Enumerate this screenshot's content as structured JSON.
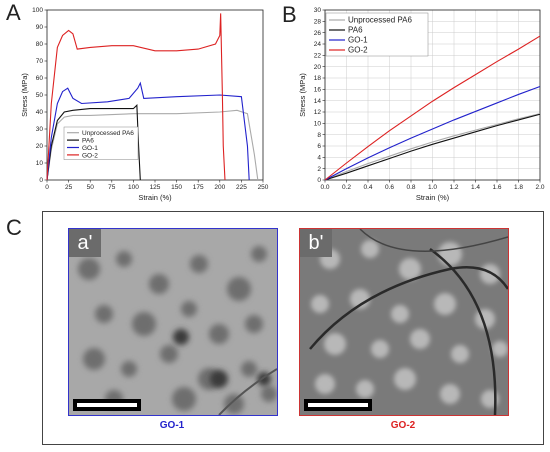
{
  "panels": {
    "a": {
      "letter": "A"
    },
    "b": {
      "letter": "B"
    },
    "c": {
      "letter": "C"
    }
  },
  "chart_data": [
    {
      "type": "line",
      "panel": "A",
      "xlabel": "Strain (%)",
      "ylabel": "Stress (MPa)",
      "xlim": [
        0,
        250
      ],
      "ylim": [
        0,
        100
      ],
      "xticks": [
        0,
        25,
        50,
        75,
        100,
        125,
        150,
        175,
        200,
        225,
        250
      ],
      "yticks": [
        0,
        10,
        20,
        30,
        40,
        50,
        60,
        70,
        80,
        90,
        100
      ],
      "grid": false,
      "legend_position": "bottom-center",
      "series": [
        {
          "name": "Unprocessed PA6",
          "color": "#aaaaaa",
          "x": [
            0,
            5,
            12,
            20,
            30,
            50,
            100,
            150,
            200,
            220,
            232,
            240,
            244
          ],
          "y": [
            0,
            18,
            33,
            37,
            38,
            38,
            39,
            39,
            40,
            41,
            39,
            15,
            0
          ]
        },
        {
          "name": "PA6",
          "color": "#111111",
          "x": [
            0,
            5,
            12,
            20,
            30,
            50,
            75,
            100,
            104,
            106,
            108
          ],
          "y": [
            0,
            20,
            35,
            40,
            41,
            42,
            42,
            42,
            44,
            20,
            0
          ]
        },
        {
          "name": "GO-1",
          "color": "#2222cc",
          "x": [
            0,
            5,
            12,
            18,
            24,
            30,
            40,
            70,
            95,
            105,
            108,
            112,
            150,
            200,
            225,
            232,
            234
          ],
          "y": [
            0,
            25,
            45,
            52,
            54,
            48,
            45,
            46,
            48,
            54,
            57,
            48,
            49,
            50,
            49,
            20,
            0
          ]
        },
        {
          "name": "GO-2",
          "color": "#dd2222",
          "x": [
            0,
            5,
            12,
            18,
            25,
            30,
            35,
            50,
            75,
            100,
            125,
            150,
            175,
            195,
            200,
            201,
            203,
            204,
            206
          ],
          "y": [
            0,
            45,
            78,
            85,
            88,
            86,
            77,
            78,
            79,
            79,
            76,
            76,
            77,
            80,
            85,
            98,
            50,
            20,
            0
          ]
        }
      ]
    },
    {
      "type": "line",
      "panel": "B",
      "xlabel": "Strain (%)",
      "ylabel": "Stress (MPa)",
      "xlim": [
        0,
        2.0
      ],
      "ylim": [
        0,
        30
      ],
      "xticks": [
        0.0,
        0.2,
        0.4,
        0.6,
        0.8,
        1.0,
        1.2,
        1.4,
        1.6,
        1.8,
        2.0
      ],
      "yticks": [
        0,
        2,
        4,
        6,
        8,
        10,
        12,
        14,
        16,
        18,
        20,
        22,
        24,
        26,
        28,
        30
      ],
      "grid": true,
      "legend_position": "top-left",
      "series": [
        {
          "name": "Unprocessed PA6",
          "color": "#aaaaaa",
          "x": [
            0,
            0.2,
            0.4,
            0.6,
            0.8,
            1.0,
            1.2,
            1.4,
            1.6,
            1.8,
            2.0
          ],
          "y": [
            0,
            1.5,
            2.9,
            4.2,
            5.5,
            6.7,
            7.8,
            8.8,
            9.8,
            10.8,
            11.7
          ]
        },
        {
          "name": "PA6",
          "color": "#111111",
          "x": [
            0,
            0.2,
            0.4,
            0.6,
            0.8,
            1.0,
            1.2,
            1.4,
            1.6,
            1.8,
            2.0
          ],
          "y": [
            0,
            1.2,
            2.5,
            3.8,
            5.1,
            6.3,
            7.4,
            8.5,
            9.6,
            10.6,
            11.6
          ]
        },
        {
          "name": "GO-1",
          "color": "#2222cc",
          "x": [
            0,
            0.2,
            0.4,
            0.6,
            0.8,
            1.0,
            1.2,
            1.4,
            1.6,
            1.8,
            2.0
          ],
          "y": [
            0,
            2.0,
            3.9,
            5.7,
            7.4,
            9.0,
            10.6,
            12.1,
            13.6,
            15.1,
            16.5
          ]
        },
        {
          "name": "GO-2",
          "color": "#dd2222",
          "x": [
            0,
            0.2,
            0.4,
            0.6,
            0.8,
            1.0,
            1.2,
            1.4,
            1.6,
            1.8,
            2.0
          ],
          "y": [
            0,
            3.0,
            5.9,
            8.7,
            11.3,
            13.9,
            16.3,
            18.6,
            20.9,
            23.1,
            25.4
          ]
        }
      ]
    }
  ],
  "tem": [
    {
      "tag": "a'",
      "caption": "GO-1",
      "color": "#2222cc"
    },
    {
      "tag": "b'",
      "caption": "GO-2",
      "color": "#dd2222"
    }
  ]
}
